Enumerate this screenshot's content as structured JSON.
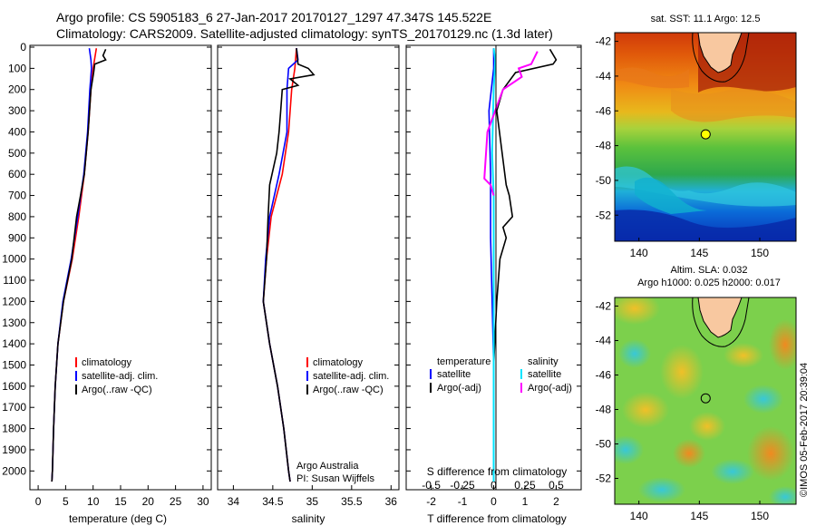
{
  "header": {
    "line1": "Argo profile: CS 5905183_6 27-Jan-2017 20170127_1297 47.347S 145.522E",
    "line2": "Climatology: CARS2009. Satellite-adjusted climatology: synTS_20170129.nc (1.3d later)"
  },
  "colors": {
    "climatology": "#ff0000",
    "satellite": "#0000ff",
    "argo": "#000000",
    "salinity_satellite": "#00e5ff",
    "salinity_argo": "#ff00ff"
  },
  "watermark": "©IMOS 05-Feb-2017 20:39:04",
  "chart_data": [
    {
      "type": "line",
      "name": "temperature-profile",
      "xlabel": "temperature (deg C)",
      "xlim": [
        -1.5,
        31.5
      ],
      "xticks": [
        "0",
        "5",
        "10",
        "15",
        "20",
        "25",
        "30"
      ],
      "ylim": [
        0,
        2080
      ],
      "yticks": [
        "0",
        "100",
        "200",
        "300",
        "400",
        "500",
        "600",
        "700",
        "800",
        "900",
        "1000",
        "1100",
        "1200",
        "1300",
        "1400",
        "1500",
        "1600",
        "1700",
        "1800",
        "1900",
        "2000"
      ],
      "legend": [
        "climatology",
        "satellite-adj. clim.",
        "Argo(..raw -QC)"
      ],
      "legend_position": "lower-middle",
      "series": [
        {
          "name": "climatology",
          "points": [
            [
              10.6,
              5
            ],
            [
              10.0,
              100
            ],
            [
              9.6,
              200
            ],
            [
              9.1,
              400
            ],
            [
              8.4,
              600
            ],
            [
              7.4,
              800
            ],
            [
              6.2,
              1000
            ],
            [
              4.6,
              1200
            ],
            [
              3.6,
              1400
            ],
            [
              3.1,
              1600
            ],
            [
              2.8,
              1800
            ],
            [
              2.6,
              2000
            ],
            [
              2.5,
              2050
            ]
          ]
        },
        {
          "name": "satellite-adj. clim.",
          "points": [
            [
              9.3,
              5
            ],
            [
              9.6,
              60
            ],
            [
              9.7,
              100
            ],
            [
              9.4,
              200
            ],
            [
              9.0,
              400
            ],
            [
              8.3,
              600
            ],
            [
              7.2,
              800
            ],
            [
              6.0,
              1000
            ],
            [
              4.5,
              1200
            ],
            [
              3.6,
              1400
            ],
            [
              3.1,
              1600
            ],
            [
              2.8,
              1800
            ],
            [
              2.6,
              2000
            ],
            [
              2.5,
              2050
            ]
          ]
        },
        {
          "name": "Argo(..raw -QC)",
          "points": [
            [
              12.3,
              10
            ],
            [
              11.8,
              40
            ],
            [
              12.3,
              60
            ],
            [
              10.3,
              80
            ],
            [
              10.1,
              120
            ],
            [
              9.6,
              200
            ],
            [
              9.1,
              400
            ],
            [
              8.4,
              600
            ],
            [
              7.7,
              700
            ],
            [
              7.0,
              800
            ],
            [
              6.1,
              1000
            ],
            [
              4.6,
              1200
            ],
            [
              3.6,
              1400
            ],
            [
              3.1,
              1600
            ],
            [
              2.8,
              1800
            ],
            [
              2.6,
              2000
            ],
            [
              2.5,
              2050
            ]
          ]
        }
      ]
    },
    {
      "type": "line",
      "name": "salinity-profile",
      "xlabel": "salinity",
      "xlim": [
        33.8,
        36.1
      ],
      "xticks": [
        "34",
        "34.5",
        "35",
        "35.5",
        "36"
      ],
      "ylim": [
        0,
        2080
      ],
      "legend": [
        "climatology",
        "satellite-adj. clim.",
        "Argo(..raw -QC)"
      ],
      "legend_position": "lower-right",
      "annotation": [
        "Argo Australia",
        "PI: Susan Wijffels"
      ],
      "series": [
        {
          "name": "climatology",
          "points": [
            [
              34.8,
              5
            ],
            [
              34.78,
              100
            ],
            [
              34.74,
              200
            ],
            [
              34.7,
              400
            ],
            [
              34.62,
              600
            ],
            [
              34.48,
              800
            ],
            [
              34.42,
              1000
            ],
            [
              34.38,
              1200
            ],
            [
              34.46,
              1400
            ],
            [
              34.56,
              1600
            ],
            [
              34.64,
              1800
            ],
            [
              34.7,
              2000
            ],
            [
              34.72,
              2050
            ]
          ]
        },
        {
          "name": "satellite-adj. clim.",
          "points": [
            [
              34.8,
              5
            ],
            [
              34.82,
              60
            ],
            [
              34.7,
              100
            ],
            [
              34.68,
              200
            ],
            [
              34.68,
              400
            ],
            [
              34.58,
              600
            ],
            [
              34.46,
              800
            ],
            [
              34.41,
              1000
            ],
            [
              34.38,
              1200
            ],
            [
              34.46,
              1400
            ],
            [
              34.56,
              1600
            ],
            [
              34.64,
              1800
            ],
            [
              34.7,
              2000
            ],
            [
              34.72,
              2050
            ]
          ]
        },
        {
          "name": "Argo(..raw -QC)",
          "points": [
            [
              34.8,
              5
            ],
            [
              34.82,
              80
            ],
            [
              34.95,
              100
            ],
            [
              35.02,
              130
            ],
            [
              34.72,
              150
            ],
            [
              34.82,
              180
            ],
            [
              34.62,
              200
            ],
            [
              34.6,
              300
            ],
            [
              34.58,
              400
            ],
            [
              34.55,
              500
            ],
            [
              34.46,
              650
            ],
            [
              34.44,
              800
            ],
            [
              34.42,
              1000
            ],
            [
              34.38,
              1200
            ],
            [
              34.46,
              1400
            ],
            [
              34.56,
              1600
            ],
            [
              34.64,
              1800
            ],
            [
              34.7,
              2000
            ],
            [
              34.72,
              2050
            ]
          ]
        }
      ]
    },
    {
      "type": "line",
      "name": "difference-profile",
      "xlabel": "T difference from climatology",
      "xlabel_top": "S difference from climatology",
      "xlim": [
        -2.8,
        2.8
      ],
      "xticks": [
        "-2",
        "-1",
        "0",
        "1",
        "2"
      ],
      "xticks_s": [
        "-0.5",
        "-0.25",
        "0",
        "0.25",
        "0.5"
      ],
      "ylim": [
        0,
        2080
      ],
      "legend": [
        "temperature",
        "satellite",
        "Argo(-adj)",
        "salinity",
        "satellite",
        "Argo(-adj)"
      ],
      "series": [
        {
          "name": "temperature satellite",
          "points": [
            [
              0.0,
              5
            ],
            [
              0.0,
              100
            ],
            [
              -0.15,
              300
            ],
            [
              -0.1,
              600
            ],
            [
              -0.1,
              900
            ],
            [
              -0.05,
              1200
            ],
            [
              0.0,
              1500
            ],
            [
              0.0,
              2000
            ],
            [
              0.0,
              2050
            ]
          ]
        },
        {
          "name": "temperature Argo(-adj)",
          "points": [
            [
              1.8,
              10
            ],
            [
              2.0,
              60
            ],
            [
              1.9,
              80
            ],
            [
              0.7,
              120
            ],
            [
              0.3,
              200
            ],
            [
              0.1,
              300
            ],
            [
              0.4,
              650
            ],
            [
              0.5,
              700
            ],
            [
              0.6,
              800
            ],
            [
              0.3,
              850
            ],
            [
              0.4,
              900
            ],
            [
              0.2,
              1000
            ],
            [
              0.1,
              1200
            ],
            [
              0.0,
              1500
            ],
            [
              0.0,
              2000
            ],
            [
              0.0,
              2050
            ]
          ]
        },
        {
          "name": "salinity satellite",
          "points": [
            [
              0.0,
              5
            ],
            [
              0.05,
              60
            ],
            [
              0.0,
              200
            ],
            [
              -0.05,
              500
            ],
            [
              0.0,
              700
            ],
            [
              0.0,
              1200
            ],
            [
              0.0,
              2050
            ]
          ]
        },
        {
          "name": "salinity Argo(-adj)",
          "points": [
            [
              1.4,
              20
            ],
            [
              1.2,
              80
            ],
            [
              0.8,
              100
            ],
            [
              0.9,
              140
            ],
            [
              0.3,
              200
            ],
            [
              -0.2,
              400
            ],
            [
              -0.3,
              620
            ],
            [
              -0.1,
              650
            ],
            [
              0.0,
              700
            ]
          ]
        }
      ]
    },
    {
      "type": "heatmap",
      "name": "sst-map",
      "title": "sat. SST: 11.1  Argo: 12.5",
      "xticks": [
        "140",
        "145",
        "150"
      ],
      "yticks": [
        "-42",
        "-44",
        "-46",
        "-48",
        "-50",
        "-52"
      ],
      "xlim": [
        138,
        153
      ],
      "ylim": [
        -53.5,
        -41.5
      ],
      "marker": {
        "lon": 145.52,
        "lat": -47.35
      }
    },
    {
      "type": "heatmap",
      "name": "sla-map",
      "title_line1": "Altim. SLA: 0.032",
      "title_line2": "Argo h1000: 0.025 h2000: 0.017",
      "xticks": [
        "140",
        "145",
        "150"
      ],
      "yticks": [
        "-42",
        "-44",
        "-46",
        "-48",
        "-50",
        "-52"
      ],
      "xlim": [
        138,
        153
      ],
      "ylim": [
        -53.5,
        -41.5
      ],
      "marker": {
        "lon": 145.52,
        "lat": -47.35
      }
    }
  ]
}
